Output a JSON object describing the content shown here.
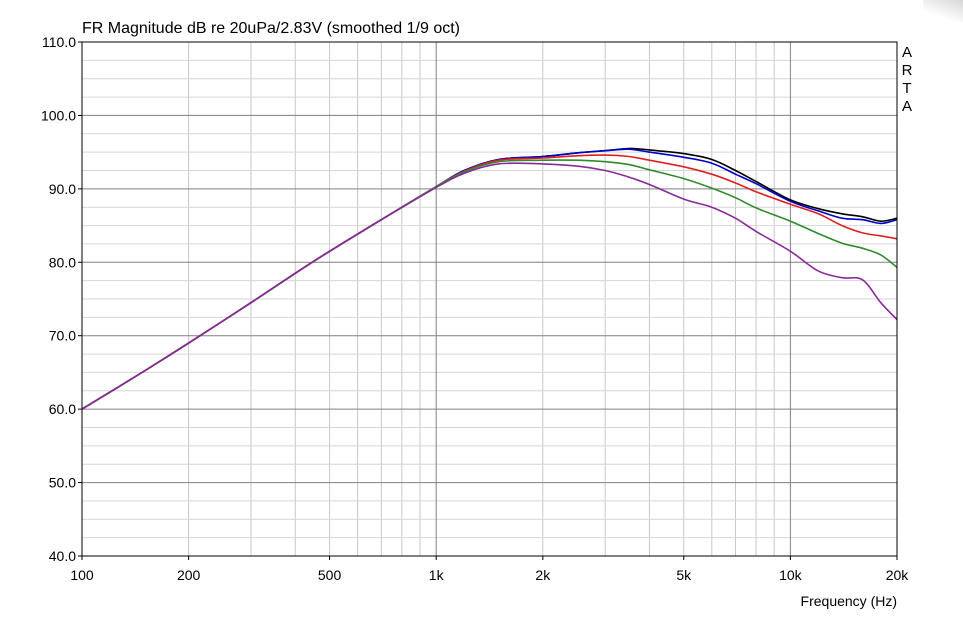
{
  "chart_data": {
    "type": "line",
    "title": "FR Magnitude dB re 20uPa/2.83V (smoothed 1/9 oct)",
    "xlabel": "Frequency (Hz)",
    "ylabel": "",
    "x_scale": "log",
    "xlim": [
      100,
      20000
    ],
    "ylim": [
      40,
      110
    ],
    "grid": true,
    "x_tick_values": [
      100,
      200,
      500,
      1000,
      2000,
      5000,
      10000,
      20000
    ],
    "x_tick_labels": [
      "100",
      "200",
      "500",
      "1k",
      "2k",
      "5k",
      "10k",
      "20k"
    ],
    "y_tick_values": [
      40,
      50,
      60,
      70,
      80,
      90,
      100,
      110
    ],
    "y_tick_labels": [
      "40.0",
      "50.0",
      "60.0",
      "70.0",
      "80.0",
      "90.0",
      "100.0",
      "110.0"
    ],
    "watermark": "ARTA",
    "x": [
      100,
      150,
      200,
      300,
      400,
      500,
      700,
      1000,
      1200,
      1500,
      2000,
      2500,
      3000,
      3500,
      4000,
      5000,
      6000,
      7000,
      8000,
      10000,
      12000,
      14000,
      16000,
      18000,
      20000
    ],
    "series": [
      {
        "color": "#000000",
        "values": [
          60.0,
          65.2,
          69.0,
          74.5,
          78.5,
          81.5,
          85.8,
          90.3,
          92.5,
          94.0,
          94.4,
          94.9,
          95.2,
          95.5,
          95.3,
          94.8,
          94.0,
          92.5,
          91.0,
          88.5,
          87.3,
          86.6,
          86.2,
          85.6,
          86.0
        ]
      },
      {
        "color": "#0000cc",
        "values": [
          60.0,
          65.2,
          69.0,
          74.5,
          78.5,
          81.5,
          85.8,
          90.3,
          92.5,
          94.0,
          94.4,
          94.9,
          95.2,
          95.4,
          95.0,
          94.3,
          93.5,
          92.0,
          90.7,
          88.3,
          87.0,
          86.0,
          85.8,
          85.3,
          85.8
        ]
      },
      {
        "color": "#e02020",
        "values": [
          60.0,
          65.2,
          69.0,
          74.5,
          78.5,
          81.5,
          85.8,
          90.3,
          92.4,
          93.9,
          94.2,
          94.5,
          94.6,
          94.4,
          93.9,
          93.0,
          92.0,
          90.8,
          89.6,
          87.9,
          86.6,
          85.0,
          84.0,
          83.6,
          83.2
        ]
      },
      {
        "color": "#2e8b2e",
        "values": [
          60.0,
          65.2,
          69.0,
          74.5,
          78.5,
          81.5,
          85.8,
          90.3,
          92.3,
          93.7,
          93.9,
          93.9,
          93.7,
          93.3,
          92.6,
          91.4,
          90.1,
          88.8,
          87.4,
          85.6,
          83.9,
          82.6,
          81.9,
          81.0,
          79.3
        ]
      },
      {
        "color": "#8a2a9a",
        "values": [
          60.0,
          65.2,
          69.0,
          74.5,
          78.5,
          81.5,
          85.8,
          90.2,
          92.1,
          93.4,
          93.4,
          93.1,
          92.5,
          91.6,
          90.6,
          88.6,
          87.5,
          86.0,
          84.2,
          81.5,
          78.8,
          77.9,
          77.6,
          74.5,
          72.2
        ]
      }
    ]
  }
}
